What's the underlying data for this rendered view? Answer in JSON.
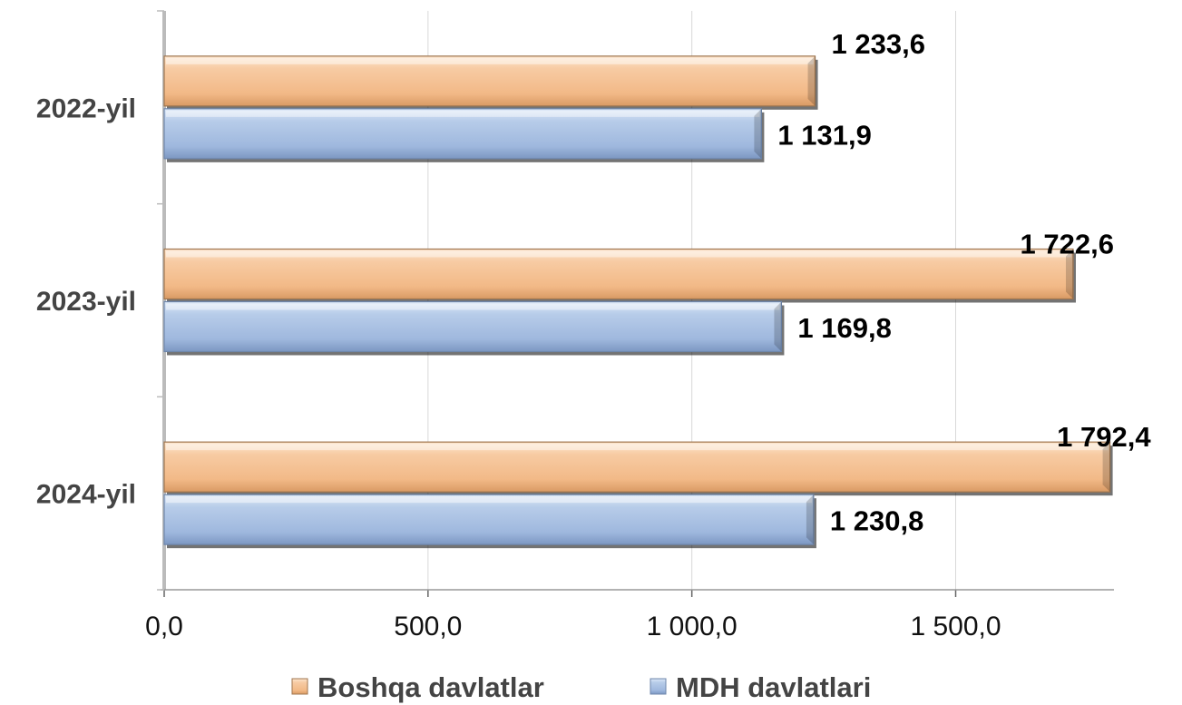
{
  "chart_data": {
    "type": "bar",
    "orientation": "horizontal",
    "categories": [
      "2022-yil",
      "2023-yil",
      "2024-yil"
    ],
    "series": [
      {
        "name": "Boshqa davlatlar",
        "values": [
          1233.6,
          1722.6,
          1792.4
        ],
        "labels": [
          "1 233,6",
          "1 722,6",
          "1 792,4"
        ],
        "color": "#f5c49a"
      },
      {
        "name": "MDH davlatlari",
        "values": [
          1131.9,
          1169.8,
          1230.8
        ],
        "labels": [
          "1 131,9",
          "1 169,8",
          "1 230,8"
        ],
        "color": "#a9c1e2"
      }
    ],
    "x_ticks": [
      0,
      500,
      1000,
      1500
    ],
    "x_tick_labels": [
      "0,0",
      "500,0",
      "1 000,0",
      "1 500,0"
    ],
    "xlim": [
      0,
      1800
    ],
    "grid": "vertical",
    "legend_position": "bottom",
    "title": "",
    "xlabel": "",
    "ylabel": ""
  }
}
